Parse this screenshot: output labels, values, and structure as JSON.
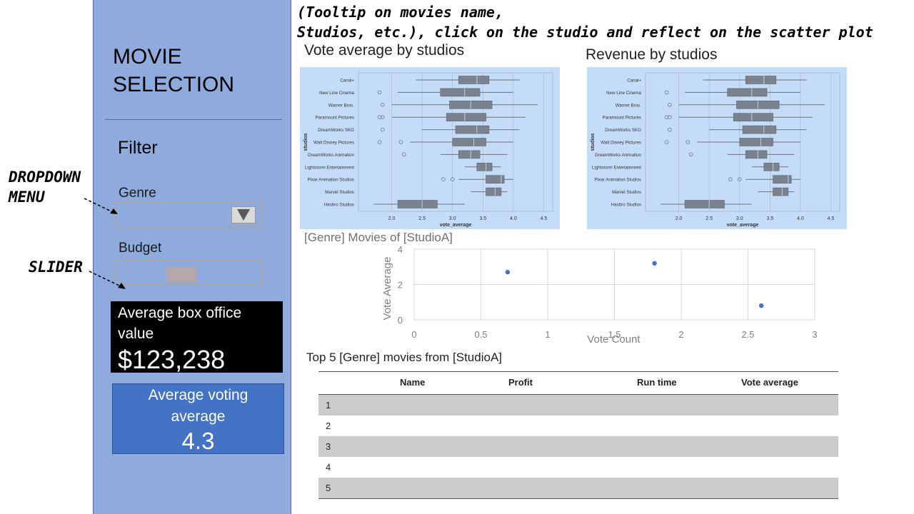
{
  "sidebar": {
    "title_line1": "MOVIE",
    "title_line2": "SELECTION",
    "filter_label": "Filter",
    "genre_label": "Genre",
    "genre_value": "",
    "budget_label": "Budget",
    "budget_slider_fraction": 0.43,
    "kpi_box_office": {
      "label_line1": "Average box office",
      "label_line2": "value",
      "value": "$123,238"
    },
    "kpi_voting": {
      "label_line1": "Average voting",
      "label_line2": "average",
      "value": "4.3"
    }
  },
  "annotations": {
    "top_line1": "(Tooltip on movies name,",
    "top_line2": "Studios, etc.), click on the studio and reflect on the scatter plot",
    "dropdown_line1": "DROPDOWN",
    "dropdown_line2": "MENU",
    "slider": "SLIDER"
  },
  "chart_data": [
    {
      "type": "boxplot",
      "title": "Vote average by studios",
      "xlabel": "vote_average",
      "ylabel": "studios",
      "xlim": [
        1.5,
        4.6
      ],
      "xticks": [
        "2.0",
        "2.5",
        "3.0",
        "3.5",
        "4.0",
        "4.5"
      ],
      "categories": [
        "Canal+",
        "New Line Cinema",
        "Warner Bros.",
        "Paramount Pictures",
        "DreamWorks SKG",
        "Walt Disney Pictures",
        "DreamWorks Animation",
        "Lightstorm Entertainment",
        "Pixar Animation Studios",
        "Marvel Studios",
        "Hasbro Studios"
      ],
      "boxes": [
        {
          "min": 2.4,
          "q1": 3.1,
          "median": 3.4,
          "q3": 3.6,
          "max": 4.1,
          "outliers": []
        },
        {
          "min": 2.1,
          "q1": 2.8,
          "median": 3.2,
          "q3": 3.45,
          "max": 4.0,
          "outliers": [
            1.8
          ]
        },
        {
          "min": 2.0,
          "q1": 2.95,
          "median": 3.3,
          "q3": 3.65,
          "max": 4.4,
          "outliers": [
            1.85
          ]
        },
        {
          "min": 2.0,
          "q1": 2.9,
          "median": 3.2,
          "q3": 3.55,
          "max": 4.2,
          "outliers": [
            1.8,
            1.85
          ]
        },
        {
          "min": 2.5,
          "q1": 3.05,
          "median": 3.4,
          "q3": 3.6,
          "max": 4.1,
          "outliers": [
            1.85
          ]
        },
        {
          "min": 2.3,
          "q1": 3.0,
          "median": 3.35,
          "q3": 3.55,
          "max": 4.0,
          "outliers": [
            1.8,
            2.15
          ]
        },
        {
          "min": 2.8,
          "q1": 3.1,
          "median": 3.3,
          "q3": 3.45,
          "max": 3.9,
          "outliers": [
            2.2
          ]
        },
        {
          "min": 3.2,
          "q1": 3.4,
          "median": 3.55,
          "q3": 3.65,
          "max": 3.8,
          "outliers": []
        },
        {
          "min": 3.1,
          "q1": 3.55,
          "median": 3.8,
          "q3": 3.85,
          "max": 4.0,
          "outliers": [
            2.85,
            3.0
          ]
        },
        {
          "min": 3.3,
          "q1": 3.55,
          "median": 3.7,
          "q3": 3.8,
          "max": 3.9,
          "outliers": []
        },
        {
          "min": 1.7,
          "q1": 2.1,
          "median": 2.5,
          "q3": 2.75,
          "max": 3.2,
          "outliers": []
        }
      ]
    },
    {
      "type": "boxplot",
      "title": "Revenue by studios",
      "xlabel": "vote_average",
      "ylabel": "studios",
      "xlim": [
        1.5,
        4.6
      ],
      "xticks": [
        "2.0",
        "2.5",
        "3.0",
        "3.5",
        "4.0",
        "4.5"
      ],
      "categories": [
        "Canal+",
        "New Line Cinema",
        "Warner Bros.",
        "Paramount Pictures",
        "DreamWorks SKG",
        "Walt Disney Pictures",
        "DreamWorks Animation",
        "Lightstorm Entertainment",
        "Pixar Animation Studios",
        "Marvel Studios",
        "Hasbro Studios"
      ],
      "boxes": [
        {
          "min": 2.4,
          "q1": 3.1,
          "median": 3.4,
          "q3": 3.6,
          "max": 4.1,
          "outliers": []
        },
        {
          "min": 2.1,
          "q1": 2.8,
          "median": 3.2,
          "q3": 3.45,
          "max": 4.0,
          "outliers": [
            1.8
          ]
        },
        {
          "min": 2.0,
          "q1": 2.95,
          "median": 3.3,
          "q3": 3.65,
          "max": 4.4,
          "outliers": [
            1.85
          ]
        },
        {
          "min": 2.0,
          "q1": 2.9,
          "median": 3.2,
          "q3": 3.55,
          "max": 4.2,
          "outliers": [
            1.8,
            1.85
          ]
        },
        {
          "min": 2.5,
          "q1": 3.05,
          "median": 3.4,
          "q3": 3.6,
          "max": 4.1,
          "outliers": [
            1.85
          ]
        },
        {
          "min": 2.3,
          "q1": 3.0,
          "median": 3.35,
          "q3": 3.55,
          "max": 4.0,
          "outliers": [
            1.8,
            2.15
          ]
        },
        {
          "min": 2.8,
          "q1": 3.1,
          "median": 3.3,
          "q3": 3.45,
          "max": 3.9,
          "outliers": [
            2.2
          ]
        },
        {
          "min": 3.2,
          "q1": 3.4,
          "median": 3.55,
          "q3": 3.65,
          "max": 3.8,
          "outliers": []
        },
        {
          "min": 3.1,
          "q1": 3.55,
          "median": 3.8,
          "q3": 3.85,
          "max": 4.0,
          "outliers": [
            2.85,
            3.0
          ]
        },
        {
          "min": 3.3,
          "q1": 3.55,
          "median": 3.7,
          "q3": 3.8,
          "max": 3.9,
          "outliers": []
        },
        {
          "min": 1.7,
          "q1": 2.1,
          "median": 2.5,
          "q3": 2.75,
          "max": 3.2,
          "outliers": []
        }
      ]
    },
    {
      "type": "scatter",
      "title": "[Genre] Movies of [StudioA]",
      "xlabel": "Vote Count",
      "ylabel": "Vote Average",
      "xlim": [
        0,
        3
      ],
      "ylim": [
        0,
        4
      ],
      "xticks": [
        "0",
        "0.5",
        "1",
        "1.5",
        "2",
        "2.5",
        "3"
      ],
      "yticks": [
        "0",
        "2",
        "4"
      ],
      "grid": true,
      "point_color": "#4472c4",
      "x": [
        0.7,
        1.8,
        2.6
      ],
      "y": [
        2.7,
        3.2,
        0.8
      ]
    }
  ],
  "table": {
    "title": "Top 5 [Genre] movies from [StudioA]",
    "columns": [
      "Name",
      "Profit",
      "Run time",
      "Vote average"
    ],
    "rows": [
      "1",
      "2",
      "3",
      "4",
      "5"
    ]
  }
}
